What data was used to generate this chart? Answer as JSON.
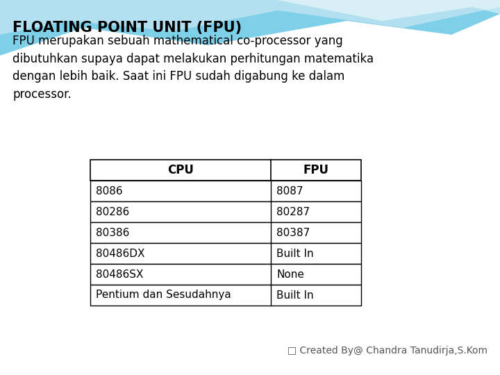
{
  "title": "FLOATING POINT UNIT (FPU)",
  "body_text": "FPU merupakan sebuah mathematical co-processor yang\ndibutuhkan supaya dapat melakukan perhitungan matematika\ndengan lebih baik. Saat ini FPU sudah digabung ke dalam\nprocessor.",
  "table_headers": [
    "CPU",
    "FPU"
  ],
  "table_rows": [
    [
      "8086",
      "8087"
    ],
    [
      "80286",
      "80287"
    ],
    [
      "80386",
      "80387"
    ],
    [
      "80486DX",
      "Built In"
    ],
    [
      "80486SX",
      "None"
    ],
    [
      "Pentium dan Sesudahnya",
      "Built In"
    ]
  ],
  "footer_text": "□ Created By@ Chandra Tanudirja,S.Kom",
  "bg_color_top": "#7ecfe8",
  "bg_color_bottom": "#ffffff",
  "title_color": "#000000",
  "body_color": "#000000",
  "table_border_color": "#000000",
  "table_header_bg": "#ffffff",
  "table_row_bg": "#ffffff",
  "footer_color": "#555555",
  "title_fontsize": 15,
  "body_fontsize": 12,
  "table_fontsize": 11,
  "footer_fontsize": 10
}
